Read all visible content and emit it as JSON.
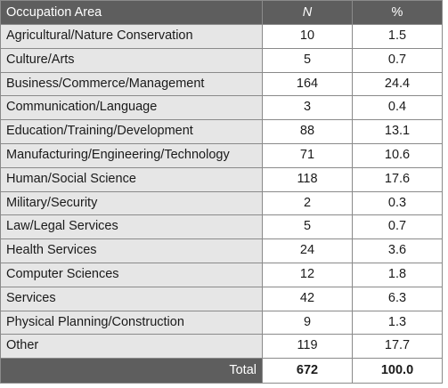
{
  "header": {
    "area": "Occupation Area",
    "n": "N",
    "pct": "%"
  },
  "rows": [
    {
      "area": "Agricultural/Nature Conservation",
      "n": "10",
      "pct": "1.5"
    },
    {
      "area": "Culture/Arts",
      "n": "5",
      "pct": "0.7"
    },
    {
      "area": "Business/Commerce/Management",
      "n": "164",
      "pct": "24.4"
    },
    {
      "area": "Communication/Language",
      "n": "3",
      "pct": "0.4"
    },
    {
      "area": "Education/Training/Development",
      "n": "88",
      "pct": "13.1"
    },
    {
      "area": "Manufacturing/Engineering/Technology",
      "n": "71",
      "pct": "10.6"
    },
    {
      "area": "Human/Social Science",
      "n": "118",
      "pct": "17.6"
    },
    {
      "area": "Military/Security",
      "n": "2",
      "pct": "0.3"
    },
    {
      "area": "Law/Legal Services",
      "n": "5",
      "pct": "0.7"
    },
    {
      "area": "Health Services",
      "n": "24",
      "pct": "3.6"
    },
    {
      "area": "Computer Sciences",
      "n": "12",
      "pct": "1.8"
    },
    {
      "area": "Services",
      "n": "42",
      "pct": "6.3"
    },
    {
      "area": "Physical Planning/Construction",
      "n": "9",
      "pct": "1.3"
    },
    {
      "area": "Other",
      "n": "119",
      "pct": "17.7"
    }
  ],
  "total": {
    "label": "Total",
    "n": "672",
    "pct": "100.0"
  }
}
